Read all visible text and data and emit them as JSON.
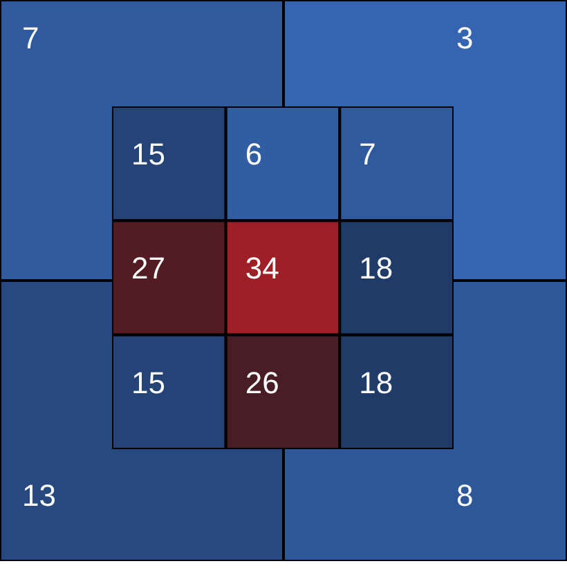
{
  "chart_data": [
    {
      "type": "heatmap",
      "categories": [
        null,
        null
      ],
      "y_categories": [
        null,
        null
      ],
      "cells": [
        [
          7,
          3
        ],
        [
          13,
          8
        ]
      ],
      "data_labels": true
    },
    {
      "type": "heatmap",
      "categories": [
        null,
        null,
        null
      ],
      "y_categories": [
        null,
        null,
        null
      ],
      "cells": [
        [
          15,
          6,
          7
        ],
        [
          27,
          34,
          18
        ],
        [
          15,
          26,
          18
        ]
      ],
      "data_labels": true
    }
  ]
}
